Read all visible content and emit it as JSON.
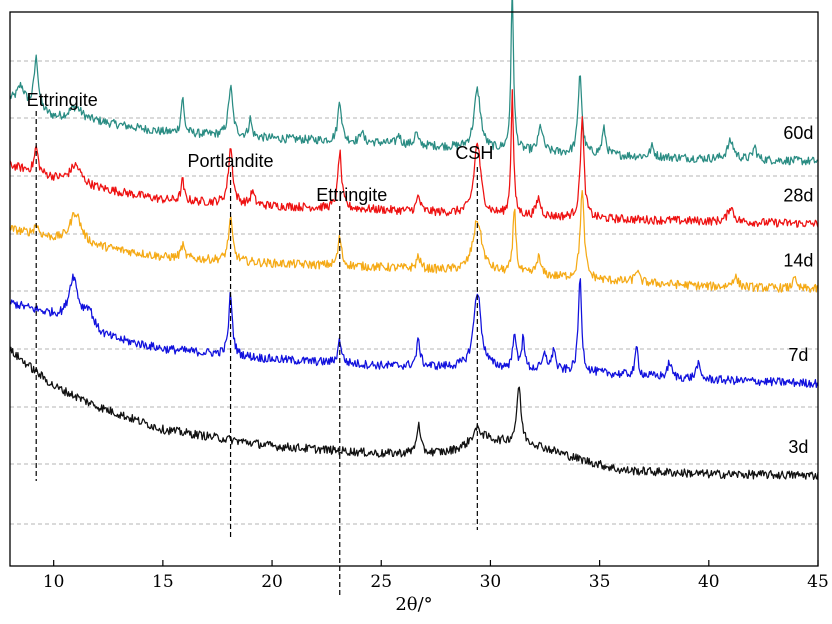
{
  "chart_data": {
    "type": "line",
    "title": "",
    "xlabel": "2θ/°",
    "ylabel": "",
    "xlim": [
      8,
      45
    ],
    "x_ticks": [
      10,
      15,
      20,
      25,
      30,
      35,
      40,
      45
    ],
    "x_tick_labels": [
      "10",
      "15",
      "20",
      "25",
      "30",
      "35",
      "40",
      "45"
    ],
    "y_axis_labels_shown": false,
    "grid": "horizontal-dashed",
    "series": [
      {
        "name": "60d",
        "color": "#2a8c83",
        "baseline": [
          [
            8,
            0.905
          ],
          [
            10,
            0.835
          ],
          [
            12,
            0.82
          ],
          [
            15,
            0.78
          ],
          [
            20,
            0.755
          ],
          [
            25,
            0.738
          ],
          [
            30,
            0.71
          ],
          [
            35,
            0.69
          ],
          [
            40,
            0.675
          ],
          [
            45,
            0.665
          ]
        ],
        "peaks": [
          [
            8.5,
            0.07,
            0.2
          ],
          [
            9.2,
            0.2,
            0.12
          ],
          [
            11,
            0.05,
            0.35
          ],
          [
            15.9,
            0.14,
            0.08
          ],
          [
            18.1,
            0.19,
            0.12
          ],
          [
            19,
            0.07,
            0.08
          ],
          [
            23.1,
            0.16,
            0.1
          ],
          [
            24.1,
            0.05,
            0.07
          ],
          [
            25.8,
            0.04,
            0.08
          ],
          [
            26.6,
            0.05,
            0.08
          ],
          [
            29.4,
            0.23,
            0.18
          ],
          [
            31,
            0.63,
            0.07
          ],
          [
            32.3,
            0.1,
            0.12
          ],
          [
            34.1,
            0.32,
            0.1
          ],
          [
            35.2,
            0.1,
            0.1
          ],
          [
            37.4,
            0.04,
            0.1
          ],
          [
            41,
            0.07,
            0.18
          ],
          [
            42.1,
            0.05,
            0.1
          ]
        ],
        "label_x": 44.1
      },
      {
        "name": "28d",
        "color": "#ee1111",
        "baseline": [
          [
            8,
            0.65
          ],
          [
            10,
            0.6
          ],
          [
            12,
            0.56
          ],
          [
            15,
            0.515
          ],
          [
            20,
            0.49
          ],
          [
            25,
            0.475
          ],
          [
            30,
            0.455
          ],
          [
            35,
            0.44
          ],
          [
            40,
            0.43
          ],
          [
            45,
            0.42
          ]
        ],
        "peaks": [
          [
            9.2,
            0.1,
            0.1
          ],
          [
            11,
            0.07,
            0.3
          ],
          [
            15.9,
            0.08,
            0.08
          ],
          [
            18.1,
            0.22,
            0.12
          ],
          [
            19.1,
            0.05,
            0.1
          ],
          [
            23.1,
            0.22,
            0.1
          ],
          [
            26.7,
            0.06,
            0.1
          ],
          [
            29.4,
            0.28,
            0.18
          ],
          [
            31,
            0.48,
            0.07
          ],
          [
            32.2,
            0.07,
            0.12
          ],
          [
            34.2,
            0.39,
            0.1
          ],
          [
            41,
            0.06,
            0.15
          ]
        ],
        "label_x": 44.1
      },
      {
        "name": "14d",
        "color": "#f5aa16",
        "baseline": [
          [
            8,
            0.4
          ],
          [
            10,
            0.36
          ],
          [
            12,
            0.33
          ],
          [
            15,
            0.29
          ],
          [
            20,
            0.265
          ],
          [
            25,
            0.25
          ],
          [
            30,
            0.23
          ],
          [
            35,
            0.2
          ],
          [
            40,
            0.175
          ],
          [
            45,
            0.165
          ]
        ],
        "peaks": [
          [
            9.2,
            0.04,
            0.12
          ],
          [
            11,
            0.12,
            0.3
          ],
          [
            15.9,
            0.05,
            0.1
          ],
          [
            18.1,
            0.16,
            0.12
          ],
          [
            23.1,
            0.11,
            0.1
          ],
          [
            26.7,
            0.05,
            0.1
          ],
          [
            29.4,
            0.2,
            0.25
          ],
          [
            31.1,
            0.26,
            0.08
          ],
          [
            32.2,
            0.07,
            0.12
          ],
          [
            34.2,
            0.34,
            0.11
          ],
          [
            36.7,
            0.05,
            0.1
          ],
          [
            41.2,
            0.04,
            0.15
          ],
          [
            43.9,
            0.06,
            0.06
          ]
        ],
        "label_x": 44.1
      },
      {
        "name": "7d",
        "color": "#1111dd",
        "baseline": [
          [
            8,
            0.11
          ],
          [
            10,
            0.06
          ],
          [
            12,
            -0.02
          ],
          [
            15,
            -0.07
          ],
          [
            20,
            -0.11
          ],
          [
            25,
            -0.135
          ],
          [
            30,
            -0.145
          ],
          [
            35,
            -0.165
          ],
          [
            40,
            -0.19
          ],
          [
            45,
            -0.205
          ]
        ],
        "peaks": [
          [
            10.9,
            0.18,
            0.25
          ],
          [
            11.6,
            0.08,
            0.3
          ],
          [
            18.1,
            0.24,
            0.1
          ],
          [
            23.1,
            0.09,
            0.1
          ],
          [
            26.7,
            0.1,
            0.1
          ],
          [
            29.4,
            0.3,
            0.2
          ],
          [
            31.1,
            0.15,
            0.08
          ],
          [
            31.5,
            0.14,
            0.07
          ],
          [
            32.5,
            0.06,
            0.12
          ],
          [
            32.9,
            0.09,
            0.08
          ],
          [
            34.1,
            0.37,
            0.09
          ],
          [
            36.7,
            0.11,
            0.08
          ],
          [
            38.2,
            0.06,
            0.1
          ],
          [
            39.5,
            0.06,
            0.1
          ]
        ],
        "label_x": 44.1
      },
      {
        "name": "3d",
        "color": "#111111",
        "baseline": [
          [
            8,
            -0.075
          ],
          [
            10,
            -0.215
          ],
          [
            12,
            -0.295
          ],
          [
            15,
            -0.385
          ],
          [
            20,
            -0.45
          ],
          [
            25,
            -0.48
          ],
          [
            28,
            -0.475
          ],
          [
            30,
            -0.43
          ],
          [
            32,
            -0.445
          ],
          [
            34,
            -0.5
          ],
          [
            36,
            -0.545
          ],
          [
            40,
            -0.56
          ],
          [
            45,
            -0.565
          ]
        ],
        "peaks": [
          [
            26.7,
            0.11,
            0.1
          ],
          [
            29.4,
            0.06,
            0.3
          ],
          [
            31.3,
            0.22,
            0.12
          ]
        ],
        "label_x": 44.1
      }
    ],
    "annotations": [
      {
        "label": "Ettringite",
        "x": 9.2
      },
      {
        "label": "Portlandite",
        "x": 18.1
      },
      {
        "label": "Ettringite",
        "x": 23.1
      },
      {
        "label": "CSH",
        "x": 29.4
      }
    ]
  }
}
